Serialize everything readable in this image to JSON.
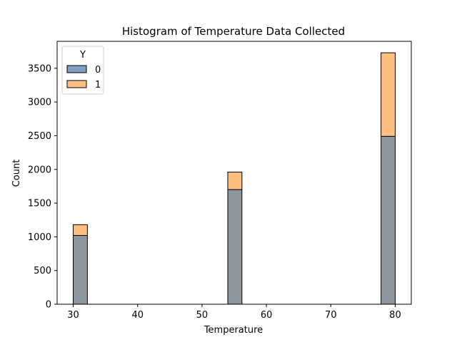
{
  "chart_data": {
    "type": "bar",
    "title": "Histogram of Temperature Data Collected",
    "xlabel": "Temperature",
    "ylabel": "Count",
    "xlim": [
      27.5,
      82.5
    ],
    "ylim": [
      0,
      3900
    ],
    "xticks": [
      30,
      40,
      50,
      60,
      70,
      80
    ],
    "yticks": [
      0,
      500,
      1000,
      1500,
      2000,
      2500,
      3000,
      3500
    ],
    "bin_width": 2.2,
    "bins": [
      {
        "x_start": 30.0,
        "x_end": 32.2
      },
      {
        "x_start": 54.0,
        "x_end": 56.2
      },
      {
        "x_start": 77.8,
        "x_end": 80.0
      }
    ],
    "series": [
      {
        "name": "0",
        "color": "#7f9fbf",
        "values": [
          1020,
          1700,
          2490
        ]
      },
      {
        "name": "1",
        "color": "#ffbf80",
        "values": [
          160,
          260,
          1240
        ]
      }
    ],
    "stacked": true,
    "legend": {
      "title": "Y",
      "placement": "top-left",
      "entries": [
        "0",
        "1"
      ]
    },
    "overlap_color": "#8c969c",
    "grid": false
  }
}
